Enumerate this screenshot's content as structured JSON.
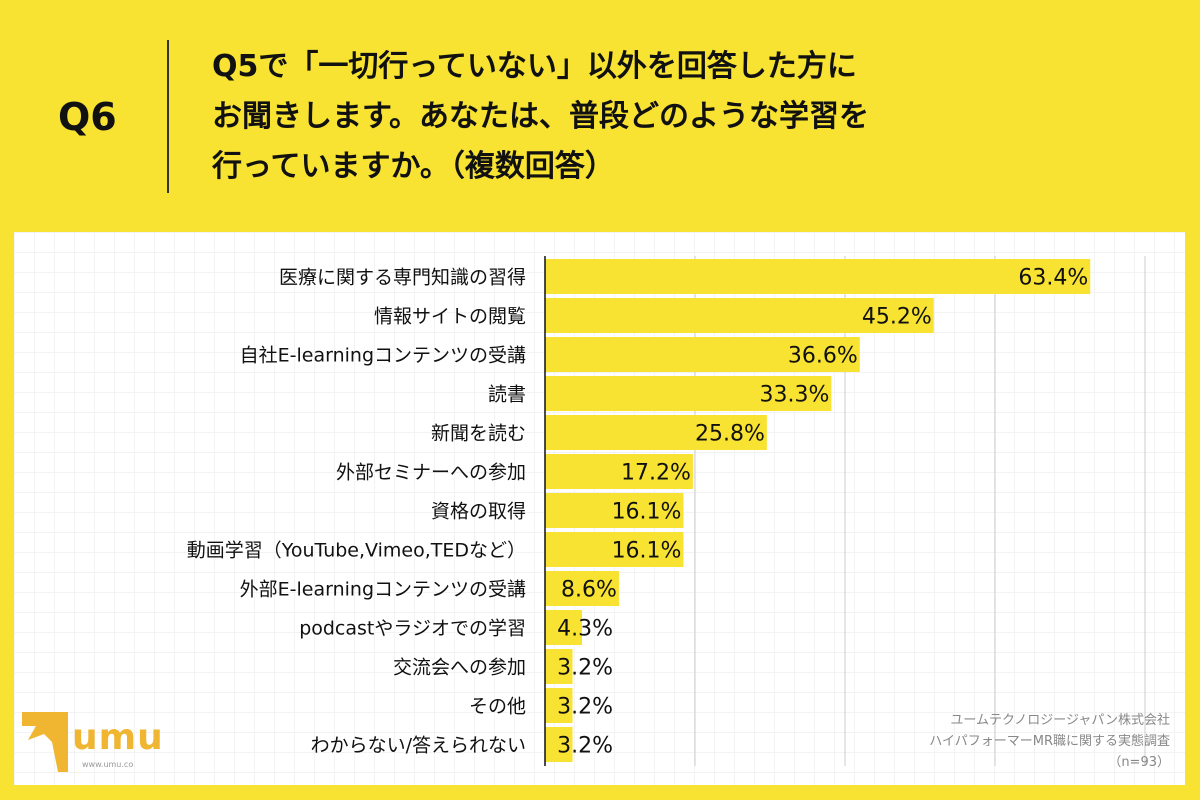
{
  "header": {
    "question": "Q6",
    "title": "Q5で「一切行っていない」以外を回答した方に\nお聞きします。あなたは、普段どのような学習を\n行っていますか。（複数回答）"
  },
  "chart_data": {
    "type": "bar",
    "orientation": "horizontal",
    "categories": [
      "医療に関する専門知識の習得",
      "情報サイトの閲覧",
      "自社E-learningコンテンツの受講",
      "読書",
      "新聞を読む",
      "外部セミナーへの参加",
      "資格の取得",
      "動画学習（YouTube,Vimeo,TEDなど）",
      "外部E-learningコンテンツの受講",
      "podcastやラジオでの学習",
      "交流会への参加",
      "その他",
      "わからない/答えられない"
    ],
    "values": [
      63.4,
      45.2,
      36.6,
      33.3,
      25.8,
      17.2,
      16.1,
      16.1,
      8.6,
      4.3,
      3.2,
      3.2,
      3.2
    ],
    "value_labels": [
      "63.4%",
      "45.2%",
      "36.6%",
      "33.3%",
      "25.8%",
      "17.2%",
      "16.1%",
      "16.1%",
      "8.6%",
      "4.3%",
      "3.2%",
      "3.2%",
      "3.2%"
    ],
    "unit": "%",
    "grid": true,
    "bar_color": "#f8e232"
  },
  "footnote": {
    "line1": "ユームテクノロジージャパン株式会社",
    "line2": "ハイパフォーマーMR職に関する実態調査",
    "line3": "（n=93）"
  },
  "logo": {
    "text": "umu",
    "url": "www.umu.co"
  }
}
